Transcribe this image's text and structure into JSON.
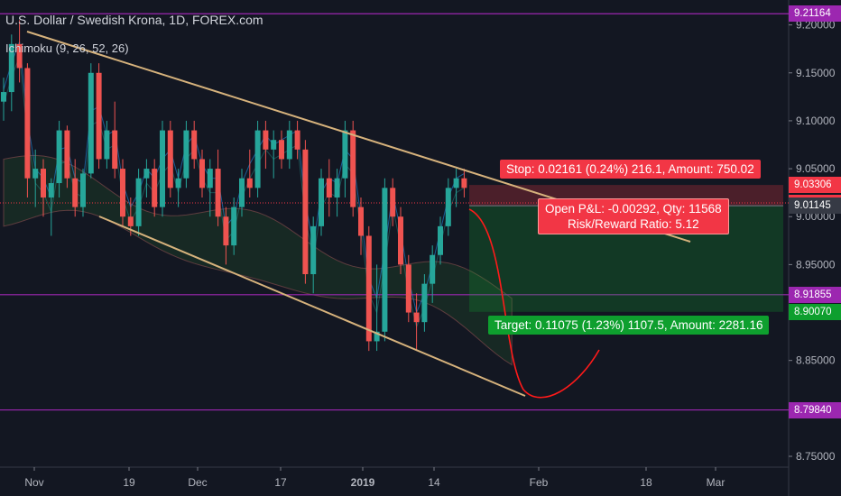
{
  "header": {
    "title": "U.S. Dollar / Swedish Krona, 1D, FOREX.com",
    "indicator": "Ichimoku (9, 26, 52, 26)"
  },
  "colors": {
    "background": "#131722",
    "up_candle": "#26a69a",
    "down_candle": "#ef5350",
    "trendline": "#d6b27c",
    "level_line": "#9c27b0",
    "stop_box": "#f23645",
    "target_box": "#0e9f2e",
    "projection": "#ff1a1a"
  },
  "position": {
    "stop_label": "Stop: 0.02161 (0.24%) 216.1, Amount: 750.02",
    "pnl_line1": "Open P&L: -0.00292, Qty: 11568",
    "pnl_line2": "Risk/Reward Ratio: 5.12",
    "target_label": "Target: 0.11075 (1.23%) 1107.5, Amount: 2281.16"
  },
  "chart_data": {
    "type": "candlestick",
    "symbol": "USDSEK",
    "timeframe": "1D",
    "x_tick_labels": [
      "Nov",
      "19",
      "Dec",
      "17",
      "2019",
      "14",
      "Feb",
      "18",
      "Mar"
    ],
    "y_tick_labels": [
      "9.20000",
      "9.15000",
      "9.10000",
      "9.05000",
      "9.00000",
      "8.95000",
      "8.90000",
      "8.85000",
      "8.80000",
      "8.75000"
    ],
    "ylim": [
      8.745,
      9.225
    ],
    "horizontal_levels": [
      9.21164,
      8.91855,
      8.7984
    ],
    "price_tags": [
      {
        "value": "9.21164",
        "color": "#9c27b0"
      },
      {
        "value": "9.03306",
        "color": "#f23645"
      },
      {
        "value": "9.01437",
        "color": "#f23645"
      },
      {
        "value": "9.01145",
        "color": "#363a45"
      },
      {
        "value": "8.91855",
        "color": "#9c27b0"
      },
      {
        "value": "8.90070",
        "color": "#0e9f2e"
      },
      {
        "value": "8.79840",
        "color": "#9c27b0"
      }
    ],
    "position": {
      "entry": 9.01145,
      "stop": 9.03306,
      "target": 8.9007,
      "last": 9.01437
    },
    "candles": [
      [
        9.12,
        9.145,
        9.1,
        9.13
      ],
      [
        9.13,
        9.19,
        9.11,
        9.18
      ],
      [
        9.18,
        9.205,
        9.14,
        9.155
      ],
      [
        9.155,
        9.16,
        9.02,
        9.04
      ],
      [
        9.04,
        9.07,
        9.01,
        9.05
      ],
      [
        9.05,
        9.06,
        9.0,
        9.02
      ],
      [
        9.02,
        9.04,
        8.98,
        9.035
      ],
      [
        9.035,
        9.1,
        9.02,
        9.09
      ],
      [
        9.09,
        9.095,
        9.03,
        9.04
      ],
      [
        9.04,
        9.06,
        9.0,
        9.01
      ],
      [
        9.01,
        9.05,
        9.0,
        9.045
      ],
      [
        9.045,
        9.16,
        9.04,
        9.15
      ],
      [
        9.15,
        9.16,
        9.05,
        9.06
      ],
      [
        9.06,
        9.1,
        9.05,
        9.09
      ],
      [
        9.09,
        9.12,
        9.04,
        9.05
      ],
      [
        9.05,
        9.06,
        8.99,
        9.0
      ],
      [
        9.0,
        9.02,
        8.98,
        8.99
      ],
      [
        8.99,
        9.05,
        8.98,
        9.04
      ],
      [
        9.04,
        9.06,
        9.02,
        9.05
      ],
      [
        9.05,
        9.06,
        9.0,
        9.01
      ],
      [
        9.01,
        9.1,
        9.0,
        9.09
      ],
      [
        9.09,
        9.1,
        9.02,
        9.03
      ],
      [
        9.03,
        9.05,
        9.01,
        9.04
      ],
      [
        9.04,
        9.1,
        9.03,
        9.09
      ],
      [
        9.09,
        9.1,
        9.05,
        9.06
      ],
      [
        9.06,
        9.07,
        9.02,
        9.03
      ],
      [
        9.03,
        9.06,
        9.0,
        9.05
      ],
      [
        9.05,
        9.07,
        8.99,
        9.0
      ],
      [
        9.0,
        9.01,
        8.95,
        8.97
      ],
      [
        8.97,
        9.02,
        8.96,
        9.01
      ],
      [
        9.01,
        9.05,
        9.0,
        9.04
      ],
      [
        9.04,
        9.07,
        9.02,
        9.03
      ],
      [
        9.03,
        9.1,
        9.02,
        9.09
      ],
      [
        9.09,
        9.1,
        9.05,
        9.07
      ],
      [
        9.07,
        9.09,
        9.04,
        9.08
      ],
      [
        9.08,
        9.09,
        9.05,
        9.06
      ],
      [
        9.06,
        9.1,
        9.05,
        9.09
      ],
      [
        9.09,
        9.1,
        9.06,
        9.07
      ],
      [
        9.07,
        9.08,
        8.93,
        8.94
      ],
      [
        8.94,
        9.0,
        8.92,
        8.99
      ],
      [
        8.99,
        9.05,
        8.98,
        9.04
      ],
      [
        9.04,
        9.06,
        9.0,
        9.02
      ],
      [
        9.02,
        9.05,
        9.0,
        9.04
      ],
      [
        9.04,
        9.1,
        9.02,
        9.09
      ],
      [
        9.09,
        9.1,
        9.0,
        9.01
      ],
      [
        9.01,
        9.02,
        8.96,
        8.98
      ],
      [
        8.98,
        8.99,
        8.86,
        8.87
      ],
      [
        8.87,
        8.95,
        8.86,
        8.88
      ],
      [
        8.88,
        9.04,
        8.87,
        9.03
      ],
      [
        9.03,
        9.04,
        8.99,
        9.0
      ],
      [
        9.0,
        9.01,
        8.94,
        8.95
      ],
      [
        8.95,
        8.96,
        8.89,
        8.9
      ],
      [
        8.9,
        8.92,
        8.86,
        8.89
      ],
      [
        8.89,
        8.94,
        8.88,
        8.93
      ],
      [
        8.93,
        8.97,
        8.91,
        8.96
      ],
      [
        8.96,
        9.0,
        8.95,
        8.99
      ],
      [
        8.99,
        9.04,
        8.98,
        9.03
      ],
      [
        9.03,
        9.05,
        9.01,
        9.04
      ],
      [
        9.04,
        9.05,
        9.02,
        9.03
      ]
    ]
  }
}
